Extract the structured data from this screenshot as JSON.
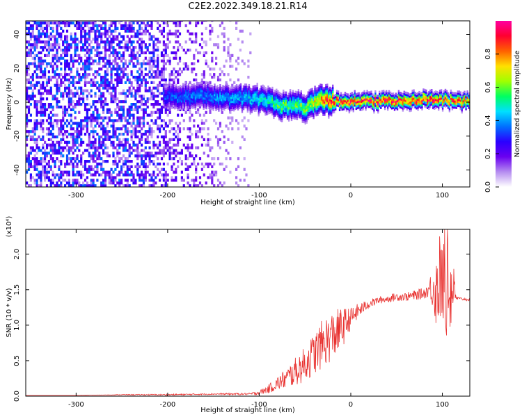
{
  "title": "C2E2.2022.349.18.21.R14",
  "chart_data": [
    {
      "type": "heatmap",
      "xlabel": "Height of straight line (km)",
      "ylabel": "Frequency (Hz)",
      "xlim": [
        -355,
        130
      ],
      "ylim": [
        -50,
        48
      ],
      "xticks": [
        -300,
        -200,
        -100,
        0,
        100
      ],
      "yticks": [
        -40,
        -20,
        0,
        20,
        40
      ],
      "colorbar": {
        "label": "Normalized spectral amplitude",
        "range": [
          0.0,
          1.0
        ],
        "ticks": [
          0.0,
          0.2,
          0.4,
          0.6,
          0.8
        ],
        "tick_labels": [
          "0.0",
          "0.2",
          "0.4",
          "0.6",
          "0.8"
        ],
        "colormap": [
          "#ffffff",
          "#b58cf0",
          "#6a00f0",
          "#2a00ff",
          "#0070ff",
          "#00e0ff",
          "#00ff60",
          "#a0ff00",
          "#ffe000",
          "#ff6000",
          "#ff0030",
          "#ff00a0"
        ]
      },
      "regions": [
        {
          "name": "noise",
          "x_range": [
            -355,
            -110
          ],
          "freq_range": [
            -50,
            48
          ],
          "amplitude": 0.25
        },
        {
          "name": "signal-ridge",
          "x_range": [
            -205,
            130
          ],
          "center_freq": 0,
          "amplitude_range": [
            0.35,
            1.0
          ]
        }
      ],
      "ridge": {
        "x": [
          -205,
          -180,
          -160,
          -140,
          -120,
          -100,
          -90,
          -80,
          -70,
          -60,
          -50,
          -40,
          -30,
          -20,
          -10,
          0,
          20,
          40,
          60,
          80,
          100,
          120,
          130
        ],
        "freq": [
          3,
          3,
          3,
          2,
          2,
          1,
          0,
          -2,
          -3,
          -1,
          -4,
          0,
          1,
          0,
          0,
          0,
          0,
          0,
          0,
          1,
          1,
          0,
          0
        ],
        "amplitude": [
          0.35,
          0.4,
          0.4,
          0.42,
          0.45,
          0.5,
          0.55,
          0.6,
          0.6,
          0.62,
          0.65,
          0.75,
          0.9,
          0.92,
          0.95,
          0.95,
          0.95,
          0.95,
          0.95,
          0.95,
          0.9,
          0.9,
          0.9
        ]
      }
    },
    {
      "type": "line",
      "xlabel": "Height of straight line (km)",
      "ylabel": "SNR (10 * v/v)",
      "y_scale_note": "(x10⁴)",
      "xlim": [
        -355,
        130
      ],
      "ylim": [
        0,
        2.35
      ],
      "xticks": [
        -300,
        -200,
        -100,
        0,
        100
      ],
      "yticks": [
        0.0,
        0.5,
        1.0,
        1.5,
        2.0
      ],
      "ytick_labels": [
        "0.0",
        "0.5",
        "1.0",
        "1.5",
        "2.0"
      ],
      "line_color": "#e8312f",
      "series": [
        {
          "x": [
            -355,
            -300,
            -250,
            -200,
            -150,
            -110,
            -100,
            -90,
            -80,
            -70,
            -60,
            -50,
            -40,
            -30,
            -20,
            -10,
            0,
            10,
            20,
            30,
            40,
            50,
            60,
            70,
            80,
            85,
            90,
            95,
            100,
            105,
            110,
            115,
            120,
            130
          ],
          "values": [
            0.01,
            0.01,
            0.02,
            0.02,
            0.03,
            0.03,
            0.05,
            0.1,
            0.18,
            0.25,
            0.35,
            0.45,
            0.6,
            0.75,
            0.85,
            0.95,
            1.1,
            1.22,
            1.3,
            1.35,
            1.37,
            1.4,
            1.4,
            1.42,
            1.45,
            1.5,
            1.55,
            1.45,
            1.65,
            1.5,
            1.55,
            1.38,
            1.37,
            1.36
          ],
          "noise": [
            0.0,
            0.0,
            0.005,
            0.01,
            0.01,
            0.015,
            0.03,
            0.06,
            0.1,
            0.15,
            0.2,
            0.25,
            0.3,
            0.35,
            0.35,
            0.3,
            0.15,
            0.1,
            0.06,
            0.05,
            0.05,
            0.06,
            0.06,
            0.07,
            0.08,
            0.1,
            0.35,
            0.6,
            0.6,
            0.7,
            0.7,
            0.03,
            0.02,
            0.02
          ]
        }
      ]
    }
  ]
}
